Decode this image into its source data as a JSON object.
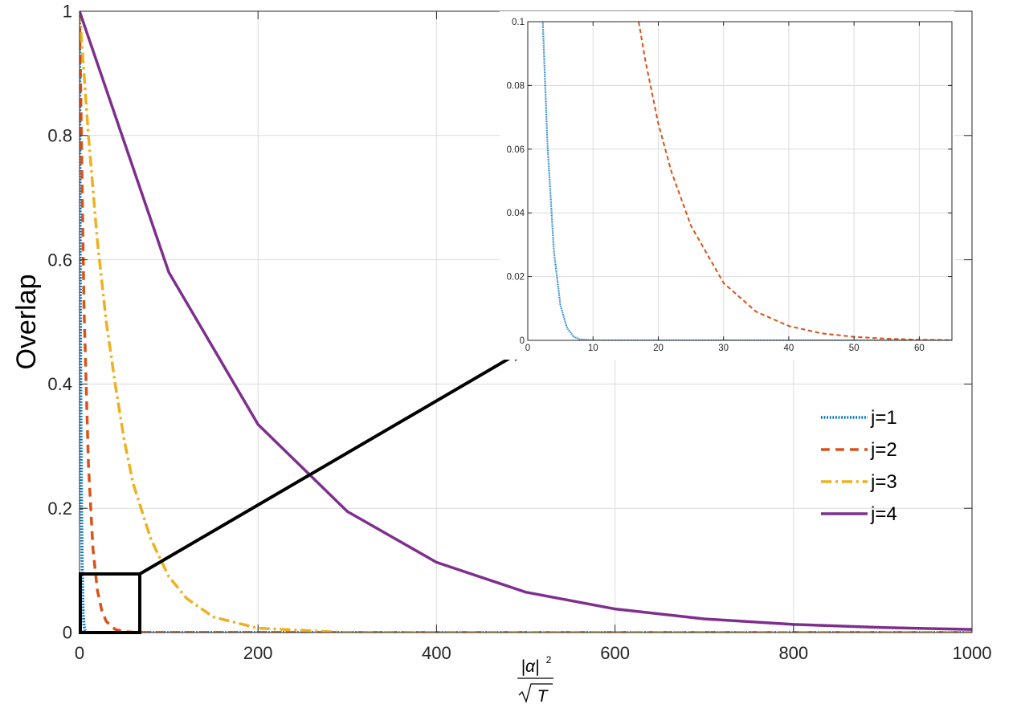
{
  "chart_data": [
    {
      "type": "line",
      "role": "main",
      "xlabel_frac": {
        "num": "|α|",
        "num_sup": "2",
        "den": "T"
      },
      "ylabel": "Overlap",
      "xlim": [
        0,
        1000
      ],
      "ylim": [
        0,
        1
      ],
      "xticks": [
        0,
        200,
        400,
        600,
        800,
        1000
      ],
      "xtick_labels": [
        "0",
        "200",
        "400",
        "600",
        "800",
        "1000"
      ],
      "yticks": [
        0,
        0.2,
        0.4,
        0.6,
        0.8,
        1
      ],
      "ytick_labels": [
        "0",
        "0.2",
        "0.4",
        "0.6",
        "0.8",
        "1"
      ],
      "grid": true,
      "legend_position": "right",
      "series": [
        {
          "name": "j=1",
          "color": "#0072BD",
          "dash": "dotted",
          "x": [
            0,
            1,
            2,
            3,
            4,
            5,
            6,
            8,
            10,
            1000
          ],
          "y": [
            1,
            0.48,
            0.23,
            0.11,
            0.032,
            0.011,
            0.004,
            0.0005,
            0,
            0
          ]
        },
        {
          "name": "j=2",
          "color": "#D95319",
          "dash": "dashed",
          "x": [
            0,
            5,
            10,
            15,
            20,
            25,
            30,
            40,
            50,
            65,
            1000
          ],
          "y": [
            1,
            0.52,
            0.27,
            0.135,
            0.068,
            0.035,
            0.018,
            0.005,
            0.0015,
            0,
            0
          ]
        },
        {
          "name": "j=3",
          "color": "#EDB120",
          "dash": "dashdot",
          "x": [
            0,
            10,
            20,
            30,
            40,
            50,
            60,
            80,
            100,
            120,
            150,
            200,
            300,
            1000
          ],
          "y": [
            1,
            0.8,
            0.63,
            0.5,
            0.4,
            0.31,
            0.24,
            0.15,
            0.09,
            0.055,
            0.025,
            0.007,
            0,
            0
          ]
        },
        {
          "name": "j=4",
          "color": "#7E2F8E",
          "dash": "solid",
          "x": [
            0,
            100,
            200,
            300,
            400,
            500,
            600,
            700,
            800,
            900,
            1000
          ],
          "y": [
            1,
            0.58,
            0.335,
            0.195,
            0.113,
            0.065,
            0.038,
            0.022,
            0.013,
            0.008,
            0.005
          ]
        }
      ]
    },
    {
      "type": "line",
      "role": "inset",
      "xlim": [
        0,
        65
      ],
      "ylim": [
        0,
        0.1
      ],
      "xticks": [
        0,
        10,
        20,
        30,
        40,
        50,
        60
      ],
      "xtick_labels": [
        "0",
        "10",
        "20",
        "30",
        "40",
        "50",
        "60"
      ],
      "yticks": [
        0,
        0.02,
        0.04,
        0.06,
        0.08,
        0.1
      ],
      "ytick_labels": [
        "0",
        "0.02",
        "0.04",
        "0.06",
        "0.08",
        "0.1"
      ],
      "grid": true,
      "series": [
        {
          "name": "j=1",
          "color": "#0072BD",
          "dash": "dotted",
          "x": [
            2.3,
            3,
            4,
            5,
            6,
            7,
            8,
            10,
            65
          ],
          "y": [
            0.1,
            0.062,
            0.028,
            0.011,
            0.004,
            0.0012,
            0.0003,
            0,
            0
          ]
        },
        {
          "name": "j=2",
          "color": "#D95319",
          "dash": "dashed",
          "x": [
            17,
            18,
            20,
            22,
            25,
            30,
            35,
            40,
            45,
            50,
            55,
            60,
            65
          ],
          "y": [
            0.1,
            0.088,
            0.068,
            0.053,
            0.036,
            0.018,
            0.009,
            0.0045,
            0.0022,
            0.0011,
            0.0005,
            0.0002,
            0.0001
          ]
        }
      ]
    }
  ]
}
